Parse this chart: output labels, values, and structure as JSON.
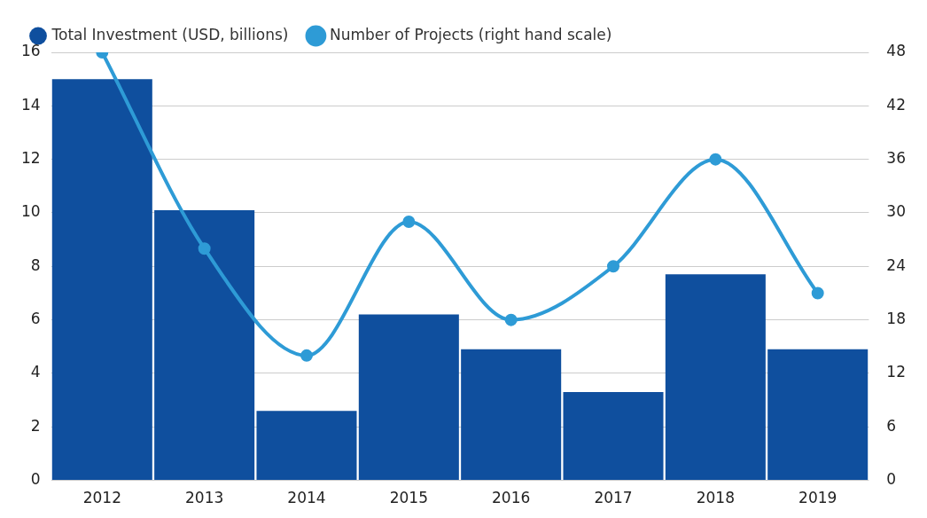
{
  "chart_data": {
    "type": "bar",
    "categories": [
      "2012",
      "2013",
      "2014",
      "2015",
      "2016",
      "2017",
      "2018",
      "2019"
    ],
    "series": [
      {
        "name": "Total Investment (USD, billions)",
        "color": "#0f4f9e",
        "values": [
          15.0,
          10.1,
          2.6,
          6.2,
          4.9,
          3.3,
          7.7,
          4.9
        ]
      },
      {
        "name": "Number of Projects (right hand scale)",
        "type": "line",
        "axis": "y2",
        "color": "#2e9bd6",
        "values": [
          48,
          26,
          14,
          29,
          18,
          24,
          36,
          21
        ]
      }
    ],
    "ylim": [
      0,
      16
    ],
    "yticks": [
      0,
      2,
      4,
      6,
      8,
      10,
      12,
      14,
      16
    ],
    "y2lim": [
      0,
      48
    ],
    "y2ticks": [
      0,
      6,
      12,
      18,
      24,
      30,
      36,
      42,
      48
    ],
    "grid": "y",
    "legend": "top left",
    "marker": "circle"
  }
}
